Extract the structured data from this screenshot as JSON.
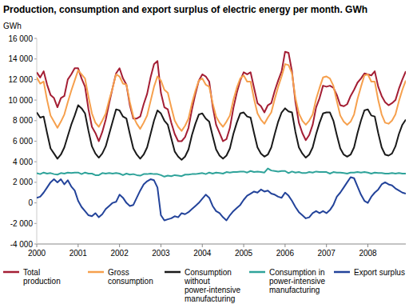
{
  "chart_data": {
    "type": "line",
    "title": "Production, consumption and export surplus of electric energy per month. GWh",
    "y_label": "GWh",
    "categories": [
      "2000",
      null,
      null,
      null,
      null,
      null,
      null,
      null,
      null,
      null,
      null,
      null,
      "2001",
      null,
      null,
      null,
      null,
      null,
      null,
      null,
      null,
      null,
      null,
      null,
      "2002",
      null,
      null,
      null,
      null,
      null,
      null,
      null,
      null,
      null,
      null,
      null,
      "2003",
      null,
      null,
      null,
      null,
      null,
      null,
      null,
      null,
      null,
      null,
      null,
      "2004",
      null,
      null,
      null,
      null,
      null,
      null,
      null,
      null,
      null,
      null,
      null,
      "2005",
      null,
      null,
      null,
      null,
      null,
      null,
      null,
      null,
      null,
      null,
      null,
      "2006",
      null,
      null,
      null,
      null,
      null,
      null,
      null,
      null,
      null,
      null,
      null,
      "2007",
      null,
      null,
      null,
      null,
      null,
      null,
      null,
      null,
      null,
      null,
      null,
      "2008",
      null,
      null,
      null,
      null,
      null,
      null,
      null,
      null,
      null,
      null,
      null
    ],
    "ylim": [
      -4000,
      16000
    ],
    "yticks": [
      {
        "value": -4000,
        "label": "-4 000"
      },
      {
        "value": -2000,
        "label": "-2 000"
      },
      0,
      {
        "value": 2000,
        "label": "2 000"
      },
      {
        "value": 4000,
        "label": "4 000"
      },
      {
        "value": 6000,
        "label": "6 000"
      },
      {
        "value": 8000,
        "label": "8 000"
      },
      {
        "value": 10000,
        "label": "10 000"
      },
      {
        "value": 12000,
        "label": "12 000"
      },
      {
        "value": 14000,
        "label": "14 000"
      },
      {
        "value": 16000,
        "label": "16 000"
      }
    ],
    "grid": false,
    "legend": "bottom",
    "series": [
      {
        "name": "Total production",
        "color": "#a41e34",
        "values": [
          12700,
          12200,
          12800,
          11500,
          10500,
          10200,
          9300,
          10200,
          10400,
          12000,
          12500,
          13100,
          13100,
          12100,
          11300,
          9100,
          7400,
          6800,
          6000,
          6900,
          8100,
          9700,
          11200,
          12600,
          13100,
          12100,
          11500,
          9500,
          8200,
          8200,
          8400,
          9600,
          10600,
          12200,
          13500,
          13800,
          10700,
          9300,
          9100,
          7800,
          6700,
          6000,
          6000,
          6400,
          7300,
          9100,
          10600,
          11900,
          12500,
          12300,
          11800,
          9400,
          7600,
          6800,
          6000,
          6200,
          7300,
          9200,
          10700,
          11900,
          12700,
          12500,
          12700,
          11200,
          9700,
          9400,
          8800,
          9500,
          9700,
          10900,
          11900,
          12800,
          14700,
          14600,
          12800,
          9800,
          7800,
          6800,
          6100,
          6600,
          7600,
          9300,
          10200,
          11400,
          11300,
          11400,
          11200,
          10500,
          9500,
          9400,
          9600,
          10400,
          11000,
          11700,
          12100,
          12600,
          12500,
          12400,
          12800,
          11300,
          10400,
          9800,
          9500,
          9700,
          10000,
          11100,
          12000,
          12800
        ]
      },
      {
        "name": "Gross consumption",
        "color": "#f6a04d",
        "values": [
          12200,
          11600,
          11800,
          10000,
          8500,
          7900,
          7300,
          7900,
          8600,
          9800,
          10900,
          11900,
          12900,
          12500,
          12100,
          10300,
          8700,
          7800,
          7400,
          8000,
          8700,
          10000,
          11200,
          12500,
          12300,
          11600,
          11500,
          9800,
          8400,
          7700,
          7200,
          7800,
          8500,
          9900,
          11300,
          12300,
          11900,
          11000,
          10700,
          9300,
          8000,
          7400,
          7000,
          7500,
          8200,
          9700,
          10900,
          11900,
          12100,
          11500,
          11300,
          9700,
          8400,
          7800,
          7400,
          7900,
          8500,
          10000,
          11200,
          12100,
          12400,
          11800,
          11800,
          10100,
          8700,
          8100,
          7700,
          8300,
          8800,
          10100,
          11300,
          12300,
          13500,
          13400,
          12600,
          10200,
          8700,
          8000,
          7600,
          8000,
          8600,
          10100,
          11200,
          12200,
          12300,
          12100,
          11400,
          9900,
          8500,
          7900,
          7600,
          7900,
          8600,
          10100,
          11300,
          12400,
          12500,
          11800,
          11800,
          10000,
          8600,
          7800,
          7700,
          8000,
          8600,
          9900,
          11000,
          11900
        ]
      },
      {
        "name": "Consumption without power-intensive manufacturing",
        "color": "#1a1a1a",
        "values": [
          8800,
          8300,
          8400,
          6800,
          5300,
          4800,
          4300,
          4700,
          5400,
          6500,
          7600,
          8500,
          9500,
          9200,
          8700,
          7000,
          5500,
          4800,
          4400,
          4800,
          5500,
          6700,
          7900,
          9100,
          9000,
          8400,
          8200,
          6700,
          5300,
          4700,
          4300,
          4700,
          5400,
          6700,
          8000,
          9000,
          8700,
          8000,
          7600,
          6300,
          5000,
          4500,
          4200,
          4500,
          5200,
          6600,
          7700,
          8600,
          8700,
          8200,
          7900,
          6500,
          5200,
          4600,
          4300,
          4600,
          5300,
          6700,
          7800,
          8700,
          8800,
          8400,
          8300,
          6800,
          5400,
          4800,
          4500,
          4700,
          5400,
          6700,
          7900,
          8800,
          9200,
          8900,
          8800,
          6900,
          5400,
          4800,
          4400,
          4700,
          5400,
          6700,
          7800,
          8700,
          8800,
          8800,
          8000,
          6600,
          5300,
          4700,
          4500,
          4700,
          5400,
          6800,
          8000,
          9000,
          9100,
          8500,
          8400,
          6800,
          5400,
          4700,
          4600,
          4800,
          5500,
          6700,
          7600,
          8100
        ]
      },
      {
        "name": "Consumption in power-intensive manufacturing",
        "color": "#2fa39a",
        "values": [
          2900,
          2800,
          2950,
          2850,
          2900,
          2800,
          2750,
          2900,
          2850,
          2950,
          2900,
          2950,
          2950,
          2800,
          2950,
          2850,
          2850,
          2700,
          2700,
          2900,
          2850,
          2900,
          2850,
          2900,
          2850,
          2700,
          2850,
          2750,
          2800,
          2700,
          2650,
          2800,
          2800,
          2850,
          2800,
          2800,
          2700,
          2550,
          2650,
          2600,
          2700,
          2650,
          2600,
          2750,
          2750,
          2800,
          2800,
          2850,
          2900,
          2800,
          2950,
          2850,
          2950,
          2900,
          2850,
          3000,
          2950,
          3000,
          3000,
          3050,
          3050,
          2950,
          3100,
          3000,
          3050,
          3000,
          2950,
          3350,
          3150,
          3100,
          3050,
          3100,
          3100,
          2900,
          3050,
          2950,
          3000,
          2900,
          2900,
          3000,
          2950,
          3050,
          3000,
          3000,
          3000,
          2850,
          3000,
          2950,
          2950,
          2900,
          2850,
          2950,
          2950,
          3000,
          2950,
          3000,
          2950,
          2850,
          2950,
          2900,
          2900,
          2850,
          2850,
          2900,
          2850,
          2900,
          2850,
          2850
        ]
      },
      {
        "name": "Export surplus",
        "color": "#23439a",
        "values": [
          500,
          600,
          1000,
          1500,
          2000,
          2300,
          2000,
          2300,
          1800,
          2200,
          1600,
          1200,
          200,
          -400,
          -800,
          -1200,
          -1300,
          -1000,
          -1400,
          -1100,
          -600,
          -300,
          0,
          100,
          800,
          500,
          0,
          -300,
          -200,
          500,
          1200,
          1800,
          2100,
          2300,
          2200,
          1500,
          -1200,
          -1700,
          -1600,
          -1500,
          -1300,
          -1400,
          -1000,
          -1100,
          -900,
          -600,
          -300,
          0,
          400,
          800,
          500,
          -300,
          -800,
          -1000,
          -1400,
          -1700,
          -1200,
          -800,
          -500,
          -200,
          300,
          700,
          900,
          1100,
          1000,
          1300,
          1100,
          1200,
          900,
          800,
          600,
          500,
          1000,
          700,
          200,
          -400,
          -900,
          -1200,
          -1500,
          -1400,
          -1000,
          -800,
          -1000,
          -800,
          -1000,
          -700,
          -200,
          600,
          1000,
          1500,
          2000,
          2500,
          2400,
          1600,
          800,
          200,
          0,
          600,
          1000,
          1300,
          1800,
          2000,
          1800,
          1700,
          1400,
          1200,
          1000,
          900
        ]
      }
    ]
  }
}
